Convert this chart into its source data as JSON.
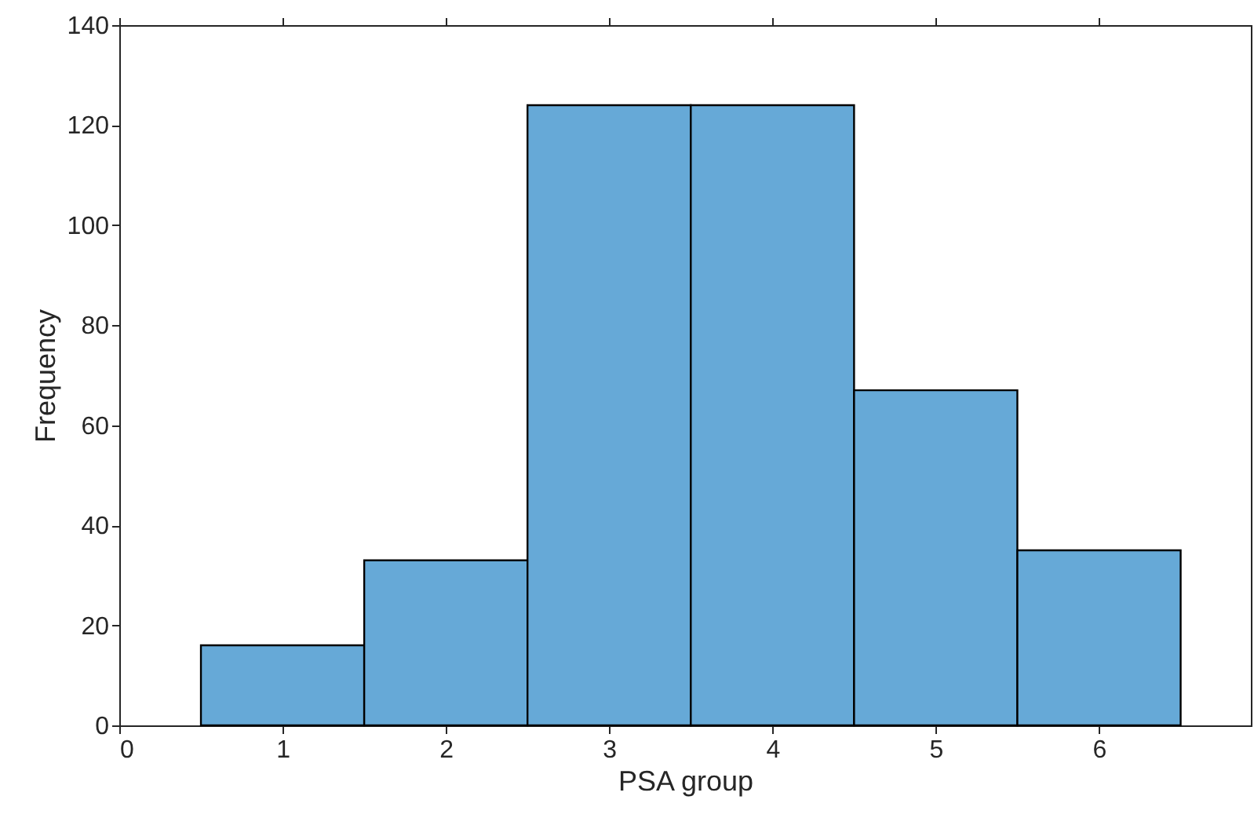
{
  "chart_data": {
    "type": "histogram",
    "xlabel": "PSA group",
    "ylabel": "Frequency",
    "bins": [
      0.5,
      1.5,
      2.5,
      3.5,
      4.5,
      5.5,
      6.5
    ],
    "values": [
      16,
      33,
      124,
      124,
      67,
      35
    ],
    "color": "#66a9d7",
    "xlim": [
      0,
      6.93
    ],
    "xticks": [
      0,
      1,
      2,
      3,
      4,
      5,
      6
    ],
    "ylim": [
      0,
      140
    ],
    "yticks": [
      0,
      20,
      40,
      60,
      80,
      100,
      120,
      140
    ],
    "grid": false
  }
}
